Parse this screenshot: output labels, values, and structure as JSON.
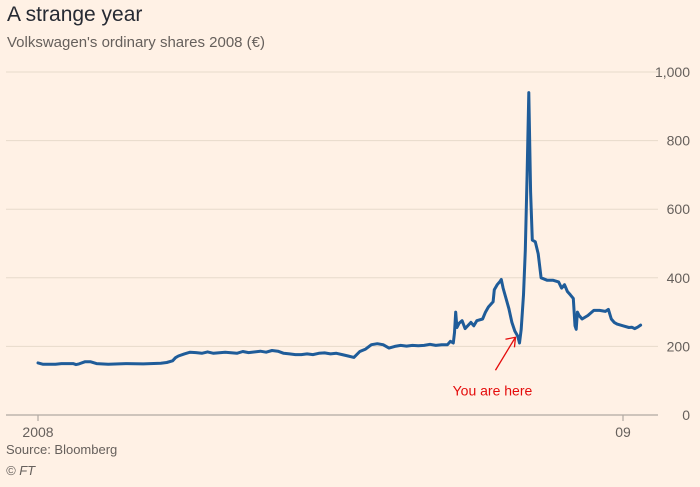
{
  "chart_data": {
    "type": "line",
    "title": "A strange year",
    "subtitle": "Volkswagen's ordinary shares 2008 (€)",
    "xlabel": "",
    "ylabel": "",
    "xlim": [
      0,
      1
    ],
    "ylim": [
      0,
      1000
    ],
    "y_ticks": [
      {
        "value": 0,
        "label": "0"
      },
      {
        "value": 200,
        "label": "200"
      },
      {
        "value": 400,
        "label": "400"
      },
      {
        "value": 600,
        "label": "600"
      },
      {
        "value": 800,
        "label": "800"
      },
      {
        "value": 1000,
        "label": "1,000"
      }
    ],
    "x_ticks": [
      {
        "value": 0,
        "label": "2008"
      },
      {
        "value": 1,
        "label": "09"
      }
    ],
    "grid": true,
    "series": [
      {
        "name": "Volkswagen ordinary shares",
        "color": "#1f5c99",
        "points": [
          [
            0.0,
            152
          ],
          [
            0.008,
            148
          ],
          [
            0.03,
            148
          ],
          [
            0.04,
            150
          ],
          [
            0.06,
            150
          ],
          [
            0.065,
            147
          ],
          [
            0.07,
            149
          ],
          [
            0.08,
            155
          ],
          [
            0.09,
            155
          ],
          [
            0.1,
            150
          ],
          [
            0.12,
            148
          ],
          [
            0.15,
            150
          ],
          [
            0.18,
            149
          ],
          [
            0.21,
            151
          ],
          [
            0.22,
            153
          ],
          [
            0.23,
            158
          ],
          [
            0.235,
            167
          ],
          [
            0.24,
            172
          ],
          [
            0.25,
            178
          ],
          [
            0.26,
            183
          ],
          [
            0.27,
            182
          ],
          [
            0.28,
            180
          ],
          [
            0.29,
            184
          ],
          [
            0.3,
            180
          ],
          [
            0.32,
            183
          ],
          [
            0.34,
            180
          ],
          [
            0.35,
            185
          ],
          [
            0.36,
            182
          ],
          [
            0.38,
            186
          ],
          [
            0.39,
            183
          ],
          [
            0.4,
            188
          ],
          [
            0.41,
            186
          ],
          [
            0.42,
            180
          ],
          [
            0.43,
            178
          ],
          [
            0.44,
            176
          ],
          [
            0.45,
            176
          ],
          [
            0.46,
            178
          ],
          [
            0.47,
            176
          ],
          [
            0.48,
            180
          ],
          [
            0.49,
            181
          ],
          [
            0.5,
            178
          ],
          [
            0.51,
            180
          ],
          [
            0.52,
            176
          ],
          [
            0.53,
            172
          ],
          [
            0.54,
            168
          ],
          [
            0.55,
            185
          ],
          [
            0.56,
            192
          ],
          [
            0.57,
            205
          ],
          [
            0.58,
            208
          ],
          [
            0.59,
            205
          ],
          [
            0.6,
            195
          ],
          [
            0.61,
            200
          ],
          [
            0.62,
            203
          ],
          [
            0.63,
            201
          ],
          [
            0.64,
            203
          ],
          [
            0.65,
            202
          ],
          [
            0.66,
            203
          ],
          [
            0.67,
            206
          ],
          [
            0.68,
            203
          ],
          [
            0.69,
            205
          ],
          [
            0.7,
            205
          ],
          [
            0.705,
            215
          ],
          [
            0.71,
            210
          ],
          [
            0.712,
            240
          ],
          [
            0.714,
            300
          ],
          [
            0.716,
            255
          ],
          [
            0.72,
            268
          ],
          [
            0.725,
            275
          ],
          [
            0.73,
            252
          ],
          [
            0.74,
            270
          ],
          [
            0.745,
            260
          ],
          [
            0.75,
            275
          ],
          [
            0.76,
            280
          ],
          [
            0.765,
            300
          ],
          [
            0.77,
            315
          ],
          [
            0.778,
            330
          ],
          [
            0.78,
            365
          ],
          [
            0.785,
            380
          ],
          [
            0.79,
            390
          ],
          [
            0.792,
            395
          ],
          [
            0.795,
            370
          ],
          [
            0.8,
            340
          ],
          [
            0.805,
            310
          ],
          [
            0.81,
            270
          ],
          [
            0.815,
            245
          ],
          [
            0.82,
            230
          ],
          [
            0.823,
            210
          ],
          [
            0.826,
            250
          ],
          [
            0.83,
            350
          ],
          [
            0.833,
            480
          ],
          [
            0.836,
            700
          ],
          [
            0.839,
            940
          ],
          [
            0.842,
            650
          ],
          [
            0.845,
            510
          ],
          [
            0.85,
            505
          ],
          [
            0.855,
            470
          ],
          [
            0.86,
            400
          ],
          [
            0.87,
            393
          ],
          [
            0.88,
            393
          ],
          [
            0.89,
            388
          ],
          [
            0.895,
            370
          ],
          [
            0.9,
            380
          ],
          [
            0.905,
            360
          ],
          [
            0.91,
            350
          ],
          [
            0.915,
            340
          ],
          [
            0.918,
            260
          ],
          [
            0.92,
            250
          ],
          [
            0.922,
            300
          ],
          [
            0.925,
            290
          ],
          [
            0.93,
            280
          ],
          [
            0.94,
            290
          ],
          [
            0.95,
            305
          ],
          [
            0.96,
            305
          ],
          [
            0.97,
            302
          ],
          [
            0.975,
            308
          ],
          [
            0.98,
            280
          ],
          [
            0.985,
            270
          ],
          [
            0.99,
            265
          ],
          [
            1.0,
            260
          ],
          [
            1.01,
            255
          ],
          [
            1.015,
            256
          ],
          [
            1.02,
            252
          ],
          [
            1.025,
            256
          ],
          [
            1.03,
            262
          ]
        ]
      }
    ],
    "annotations": [
      {
        "text": "You are here",
        "color": "#e40c0c",
        "x": 0.823,
        "y": 215
      }
    ]
  },
  "footer": {
    "source": "Source: Bloomberg",
    "copyright": "© FT"
  }
}
